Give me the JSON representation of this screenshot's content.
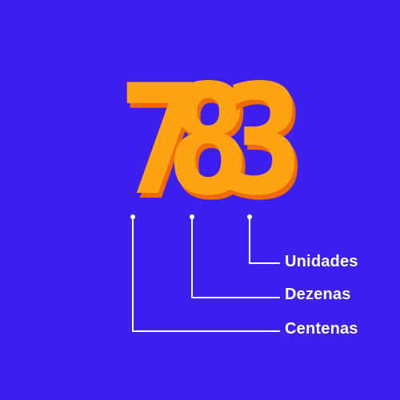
{
  "number": {
    "digits": [
      "7",
      "8",
      "3"
    ]
  },
  "labels": {
    "units": "Unidades",
    "tens": "Dezenas",
    "hundreds": "Centenas"
  },
  "colors": {
    "background": "#3d1ff0",
    "digit": "#ffa312",
    "digit_shadow": "#f06a00",
    "line": "#ffffff"
  }
}
